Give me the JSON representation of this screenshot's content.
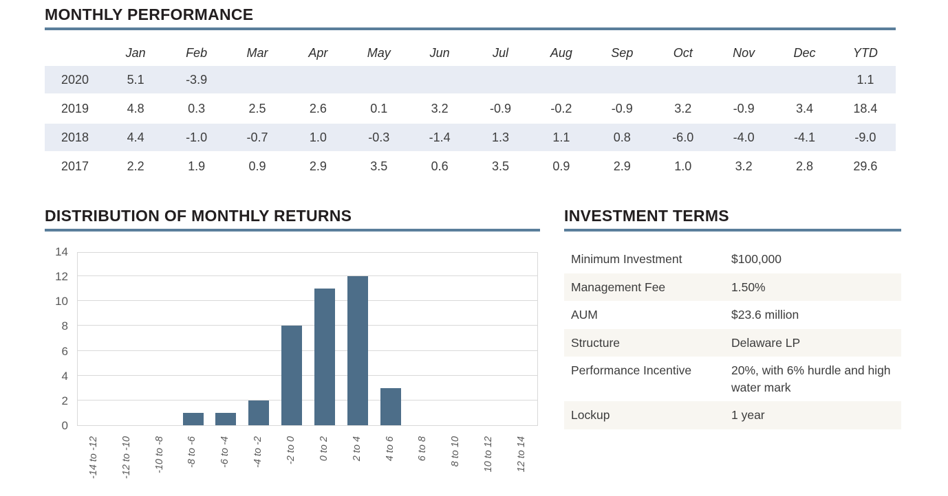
{
  "colors": {
    "accent_rule": "#5a7e9b",
    "bar": "#4d6e89",
    "perf_row_highlight": "#e8ecf4",
    "terms_row_alt": "#f8f6f1",
    "title_text": "#221e1f",
    "body_text": "#3c3c3c",
    "axis_text": "#595959",
    "gridline": "#d9d9d9"
  },
  "monthly_performance": {
    "title": "MONTHLY PERFORMANCE",
    "columns": [
      "Jan",
      "Feb",
      "Mar",
      "Apr",
      "May",
      "Jun",
      "Jul",
      "Aug",
      "Sep",
      "Oct",
      "Nov",
      "Dec",
      "YTD"
    ],
    "rows": [
      {
        "year": "2020",
        "highlighted": true,
        "values": [
          "5.1",
          "-3.9",
          "",
          "",
          "",
          "",
          "",
          "",
          "",
          "",
          "",
          "",
          "1.1"
        ]
      },
      {
        "year": "2019",
        "highlighted": false,
        "values": [
          "4.8",
          "0.3",
          "2.5",
          "2.6",
          "0.1",
          "3.2",
          "-0.9",
          "-0.2",
          "-0.9",
          "3.2",
          "-0.9",
          "3.4",
          "18.4"
        ]
      },
      {
        "year": "2018",
        "highlighted": true,
        "values": [
          "4.4",
          "-1.0",
          "-0.7",
          "1.0",
          "-0.3",
          "-1.4",
          "1.3",
          "1.1",
          "0.8",
          "-6.0",
          "-4.0",
          "-4.1",
          "-9.0"
        ]
      },
      {
        "year": "2017",
        "highlighted": false,
        "values": [
          "2.2",
          "1.9",
          "0.9",
          "2.9",
          "3.5",
          "0.6",
          "3.5",
          "0.9",
          "2.9",
          "1.0",
          "3.2",
          "2.8",
          "29.6"
        ]
      }
    ]
  },
  "distribution": {
    "title": "DISTRIBUTION OF MONTHLY RETURNS"
  },
  "chart_data": {
    "type": "bar",
    "title": "DISTRIBUTION OF MONTHLY RETURNS",
    "categories": [
      "-14 to -12",
      "-12 to -10",
      "-10 to -8",
      "-8 to -6",
      "-6 to -4",
      "-4 to -2",
      "-2 to 0",
      "0 to 2",
      "2 to 4",
      "4 to 6",
      "6 to 8",
      "8 to 10",
      "10 to 12",
      "12 to 14"
    ],
    "values": [
      0,
      0,
      0,
      1,
      1,
      2,
      8,
      11,
      12,
      3,
      0,
      0,
      0,
      0
    ],
    "xlabel": "",
    "ylabel": "",
    "ylim": [
      0,
      14
    ],
    "yticks": [
      0,
      2,
      4,
      6,
      8,
      10,
      12,
      14
    ],
    "grid": true,
    "legend": "none",
    "bar_color": "#4d6e89"
  },
  "investment_terms": {
    "title": "INVESTMENT TERMS",
    "rows": [
      {
        "label": "Minimum Investment",
        "value": "$100,000"
      },
      {
        "label": "Management Fee",
        "value": "1.50%"
      },
      {
        "label": "AUM",
        "value": "$23.6 million"
      },
      {
        "label": "Structure",
        "value": "Delaware LP"
      },
      {
        "label": "Performance Incentive",
        "value": "20%, with 6% hurdle and high water mark"
      },
      {
        "label": "Lockup",
        "value": "1 year"
      }
    ]
  }
}
